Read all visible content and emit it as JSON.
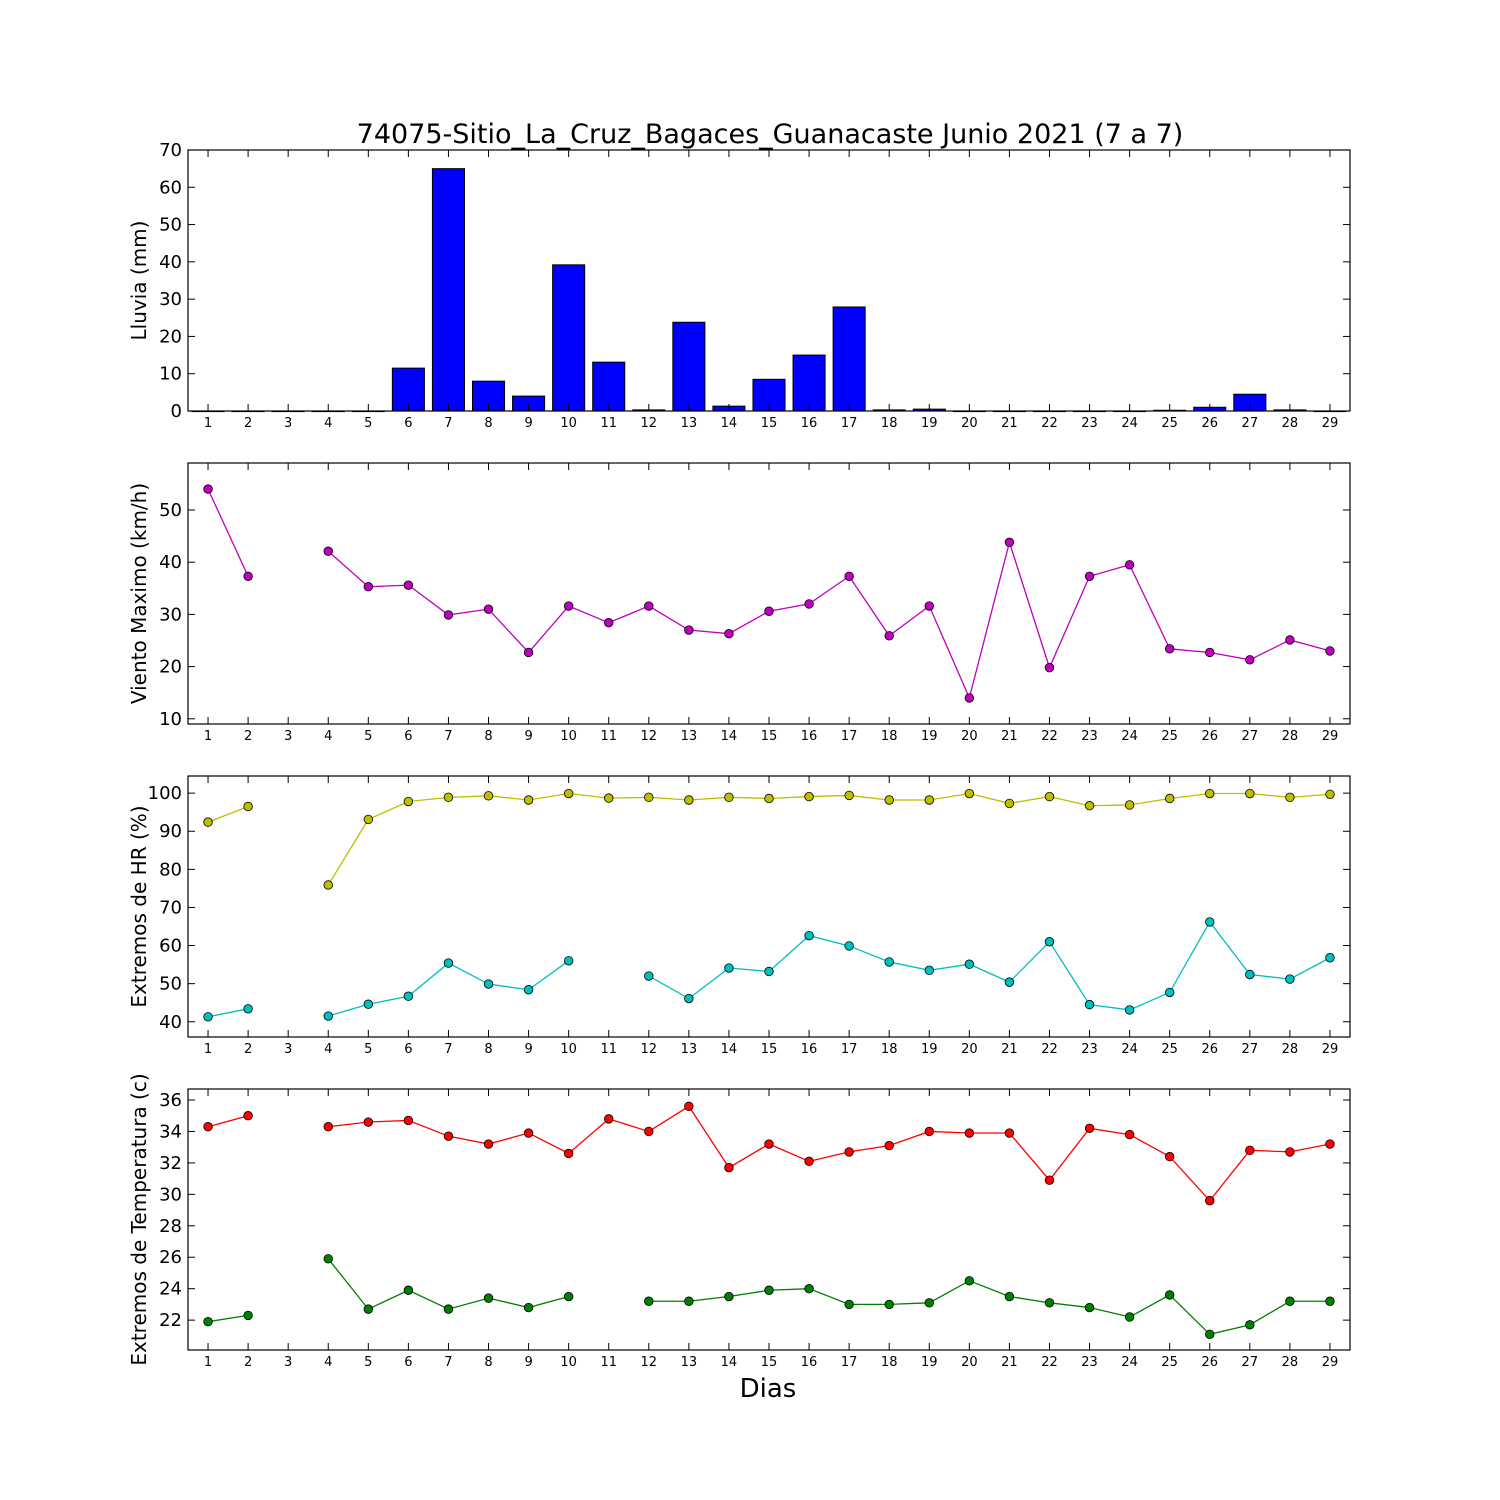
{
  "title": "74075-Sitio_La_Cruz_Bagaces_Guanacaste Junio 2021  (7 a 7)",
  "xlabel": "Dias",
  "days": [
    1,
    2,
    3,
    4,
    5,
    6,
    7,
    8,
    9,
    10,
    11,
    12,
    13,
    14,
    15,
    16,
    17,
    18,
    19,
    20,
    21,
    22,
    23,
    24,
    25,
    26,
    27,
    28,
    29
  ],
  "chart_data": [
    {
      "type": "bar",
      "ylabel": "Lluvia (mm)",
      "ylim": [
        0,
        70
      ],
      "yticks": [
        0,
        10,
        20,
        30,
        40,
        50,
        60,
        70
      ],
      "color": "#0000ff",
      "series": [
        {
          "values": [
            0,
            0,
            0,
            0,
            0,
            11.5,
            65,
            8,
            4,
            39.2,
            13.1,
            0.3,
            23.8,
            1.3,
            8.5,
            15,
            27.9,
            0.3,
            0.5,
            0,
            0,
            0,
            0,
            0,
            0.2,
            1,
            4.5,
            0.3,
            0
          ]
        }
      ]
    },
    {
      "type": "line",
      "ylabel": "Viento Maximo (km/h)",
      "ylim": [
        9,
        59
      ],
      "yticks": [
        10,
        20,
        30,
        40,
        50
      ],
      "series": [
        {
          "color": "#bf00bf",
          "values": [
            54,
            37.3,
            null,
            42.1,
            35.3,
            35.6,
            29.9,
            31,
            22.7,
            31.6,
            28.4,
            31.6,
            27,
            26.3,
            30.6,
            32,
            37.3,
            25.9,
            31.6,
            14,
            43.8,
            19.8,
            37.3,
            39.5,
            23.4,
            22.7,
            21.3,
            25.1,
            23
          ]
        }
      ]
    },
    {
      "type": "line",
      "ylabel": "Extremos de HR (%)",
      "ylim": [
        36,
        104.5
      ],
      "yticks": [
        40,
        50,
        60,
        70,
        80,
        90,
        100
      ],
      "series": [
        {
          "color": "#bfbf00",
          "values": [
            92.4,
            96.5,
            null,
            75.9,
            93.1,
            97.8,
            98.9,
            99.3,
            98.2,
            99.9,
            98.7,
            98.9,
            98.2,
            98.9,
            98.6,
            99.1,
            99.4,
            98.2,
            98.2,
            99.9,
            97.3,
            99.1,
            96.7,
            96.9,
            98.6,
            99.9,
            99.9,
            98.9,
            99.7
          ]
        },
        {
          "color": "#00bfbf",
          "values": [
            41.3,
            43.4,
            null,
            41.5,
            44.6,
            46.7,
            55.4,
            49.9,
            48.4,
            56,
            null,
            52,
            46.1,
            54.1,
            53.2,
            62.6,
            59.9,
            55.7,
            53.5,
            55.1,
            50.4,
            61,
            44.5,
            43.1,
            47.7,
            66.2,
            52.4,
            51.2,
            56.8
          ]
        }
      ]
    },
    {
      "type": "line",
      "ylabel": "Extremos de Temperatura (c)",
      "ylim": [
        20.1,
        36.7
      ],
      "yticks": [
        22,
        24,
        26,
        28,
        30,
        32,
        34,
        36
      ],
      "series": [
        {
          "color": "#ff0000",
          "values": [
            34.3,
            35,
            null,
            34.3,
            34.6,
            34.7,
            33.7,
            33.2,
            33.9,
            32.6,
            34.8,
            34,
            35.6,
            31.7,
            33.2,
            32.1,
            32.7,
            33.1,
            34,
            33.9,
            33.9,
            30.9,
            34.2,
            33.8,
            32.4,
            29.6,
            32.8,
            32.7,
            33.2
          ]
        },
        {
          "color": "#008000",
          "values": [
            21.9,
            22.3,
            null,
            25.9,
            22.7,
            23.9,
            22.7,
            23.4,
            22.8,
            23.5,
            null,
            23.2,
            23.2,
            23.5,
            23.9,
            24,
            23,
            23,
            23.1,
            24.5,
            23.5,
            23.1,
            22.8,
            22.2,
            23.6,
            21.1,
            21.7,
            23.2,
            23.2
          ]
        }
      ]
    }
  ]
}
